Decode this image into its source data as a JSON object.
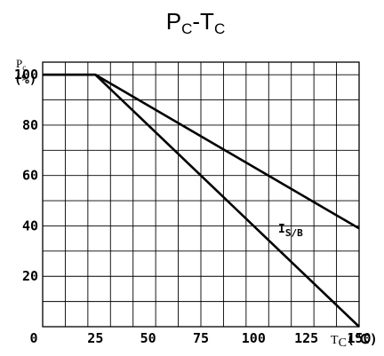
{
  "chart_data": {
    "type": "line",
    "title": {
      "main": "P",
      "main_sub": "C",
      "sep": "-T",
      "sep_sub": "C"
    },
    "ylabel": {
      "symbol": "P",
      "symbol_sub": "c",
      "unit": "(%)"
    },
    "xlabel": {
      "symbol": "T",
      "symbol_sub": "C",
      "unit": "(℃)"
    },
    "xlim": [
      0,
      150
    ],
    "ylim": [
      0,
      105
    ],
    "x_ticks": [
      0,
      25,
      50,
      75,
      100,
      125,
      150
    ],
    "y_ticks": [
      20,
      40,
      60,
      80,
      100
    ],
    "grid": true,
    "series": [
      {
        "name": "I",
        "name_sub": "S/B",
        "x": [
          0,
          25,
          150
        ],
        "y": [
          100,
          100,
          39
        ]
      },
      {
        "x": [
          0,
          25,
          150
        ],
        "y": [
          100,
          100,
          0
        ]
      }
    ]
  }
}
